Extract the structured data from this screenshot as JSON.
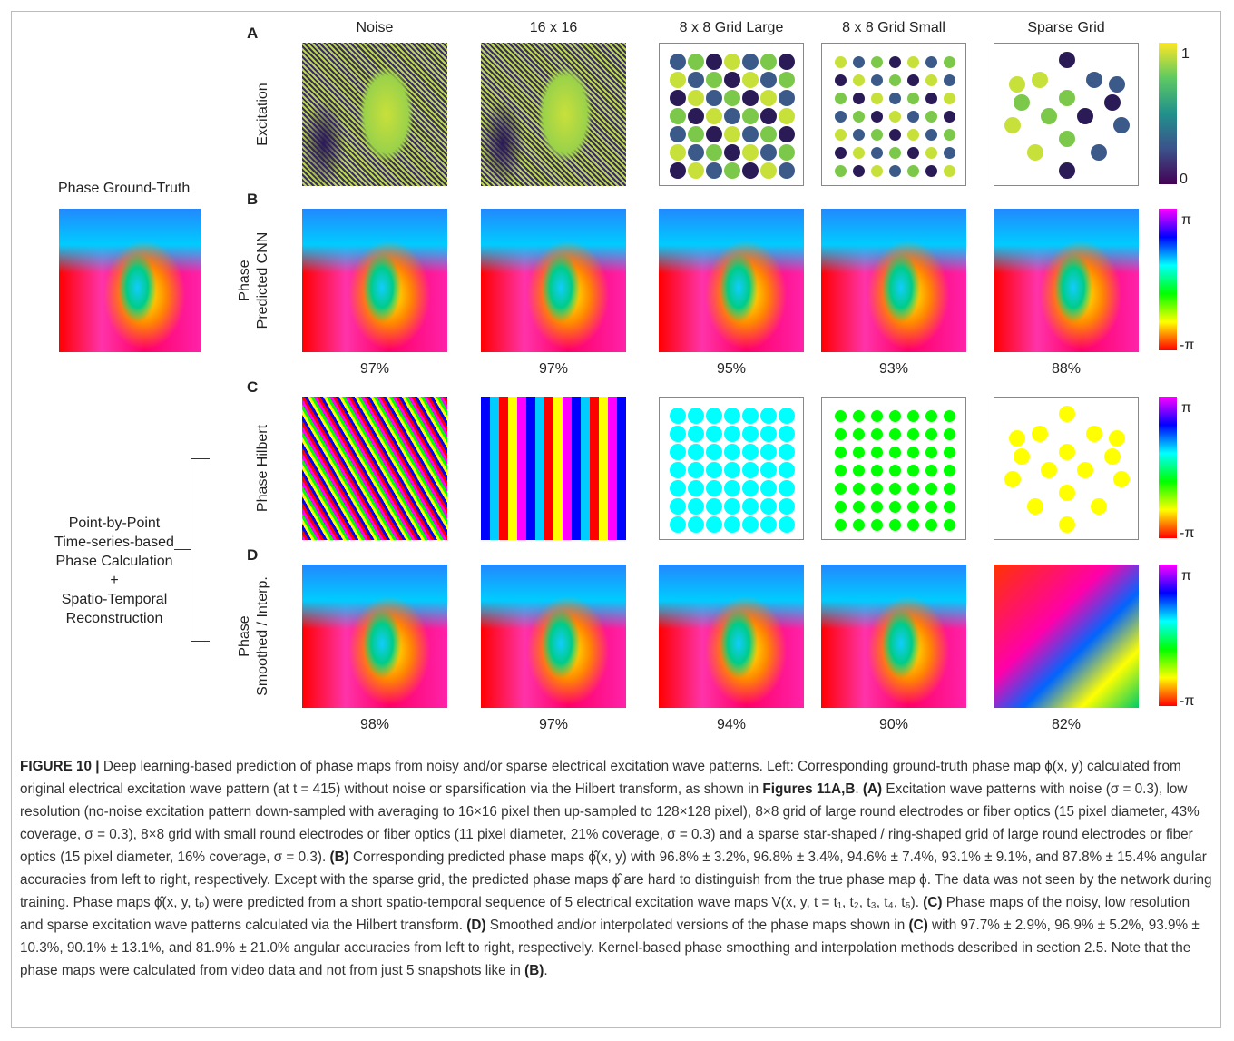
{
  "figure": {
    "ground_truth_label": "Phase Ground-Truth",
    "method_lines": [
      "Point-by-Point",
      "Time-series-based",
      "Phase Calculation",
      "+",
      "Spatio-Temporal",
      "Reconstruction"
    ],
    "columns": [
      "Noise",
      "16 x 16",
      "8 x 8 Grid Large",
      "8 x 8 Grid Small",
      "Sparse Grid"
    ],
    "rows": [
      {
        "letter": "A",
        "label": [
          "Excitation"
        ],
        "colorbar": {
          "top": "1",
          "bottom": "0"
        }
      },
      {
        "letter": "B",
        "label": [
          "Phase",
          "Predicted CNN"
        ],
        "colorbar": {
          "top": "π",
          "bottom": "-π"
        },
        "accuracies": [
          "97%",
          "97%",
          "95%",
          "93%",
          "88%"
        ]
      },
      {
        "letter": "C",
        "label": [
          "Phase Hilbert"
        ],
        "colorbar": {
          "top": "π",
          "bottom": "-π"
        }
      },
      {
        "letter": "D",
        "label": [
          "Phase",
          "Smoothed / Interp."
        ],
        "colorbar": {
          "top": "π",
          "bottom": "-π"
        },
        "accuracies": [
          "98%",
          "97%",
          "94%",
          "90%",
          "82%"
        ]
      }
    ]
  },
  "caption": [
    {
      "text": "FIGURE 10 |",
      "bold": true
    },
    {
      "text": " Deep learning-based prediction of phase maps from noisy and/or sparse electrical excitation wave patterns. Left: Corresponding ground-truth phase map ϕ(x, y) calculated from original electrical excitation wave pattern (at t = 415) without noise or sparsification via the Hilbert transform, as shown in "
    },
    {
      "text": "Figures 11A,B",
      "bold": true
    },
    {
      "text": ". "
    },
    {
      "text": "(A)",
      "bold": true
    },
    {
      "text": " Excitation wave patterns with noise (σ = 0.3), low resolution (no-noise excitation pattern down-sampled with averaging to 16×16 pixel then up-sampled to 128×128 pixel), 8×8 grid of large round electrodes or fiber optics (15 pixel diameter, 43% coverage, σ = 0.3), 8×8 grid with small round electrodes or fiber optics (11 pixel diameter, 21% coverage, σ = 0.3) and a sparse star-shaped / ring-shaped grid of large round electrodes or fiber optics (15 pixel diameter, 16% coverage, σ = 0.3). "
    },
    {
      "text": "(B)",
      "bold": true
    },
    {
      "text": " Corresponding predicted phase maps ϕ̂(x, y) with 96.8% ± 3.2%, 96.8% ± 3.4%, 94.6% ± 7.4%, 93.1% ± 9.1%, and 87.8% ± 15.4% angular accuracies from left to right, respectively. Except with the sparse grid, the predicted phase maps ϕ̂ are hard to distinguish from the true phase map ϕ. The data was not seen by the network during training. Phase maps ϕ̂(x, y, tₚ) were predicted from a short spatio-temporal sequence of 5 electrical excitation wave maps V(x, y, t = t₁, t₂, t₃, t₄, t₅). "
    },
    {
      "text": "(C)",
      "bold": true
    },
    {
      "text": " Phase maps of the noisy, low resolution and sparse excitation wave patterns calculated via the Hilbert transform. "
    },
    {
      "text": "(D)",
      "bold": true
    },
    {
      "text": " Smoothed and/or interpolated versions of the phase maps shown in "
    },
    {
      "text": "(C)",
      "bold": true
    },
    {
      "text": " with 97.7% ± 2.9%, 96.9% ± 5.2%, 93.9% ± 10.3%, 90.1% ± 13.1%, and 81.9% ± 21.0% angular accuracies from left to right, respectively. Kernel-based phase smoothing and interpolation methods described in section 2.5. Note that the phase maps were calculated from video data and not from just 5 snapshots like in "
    },
    {
      "text": "(B)",
      "bold": true
    },
    {
      "text": "."
    }
  ]
}
